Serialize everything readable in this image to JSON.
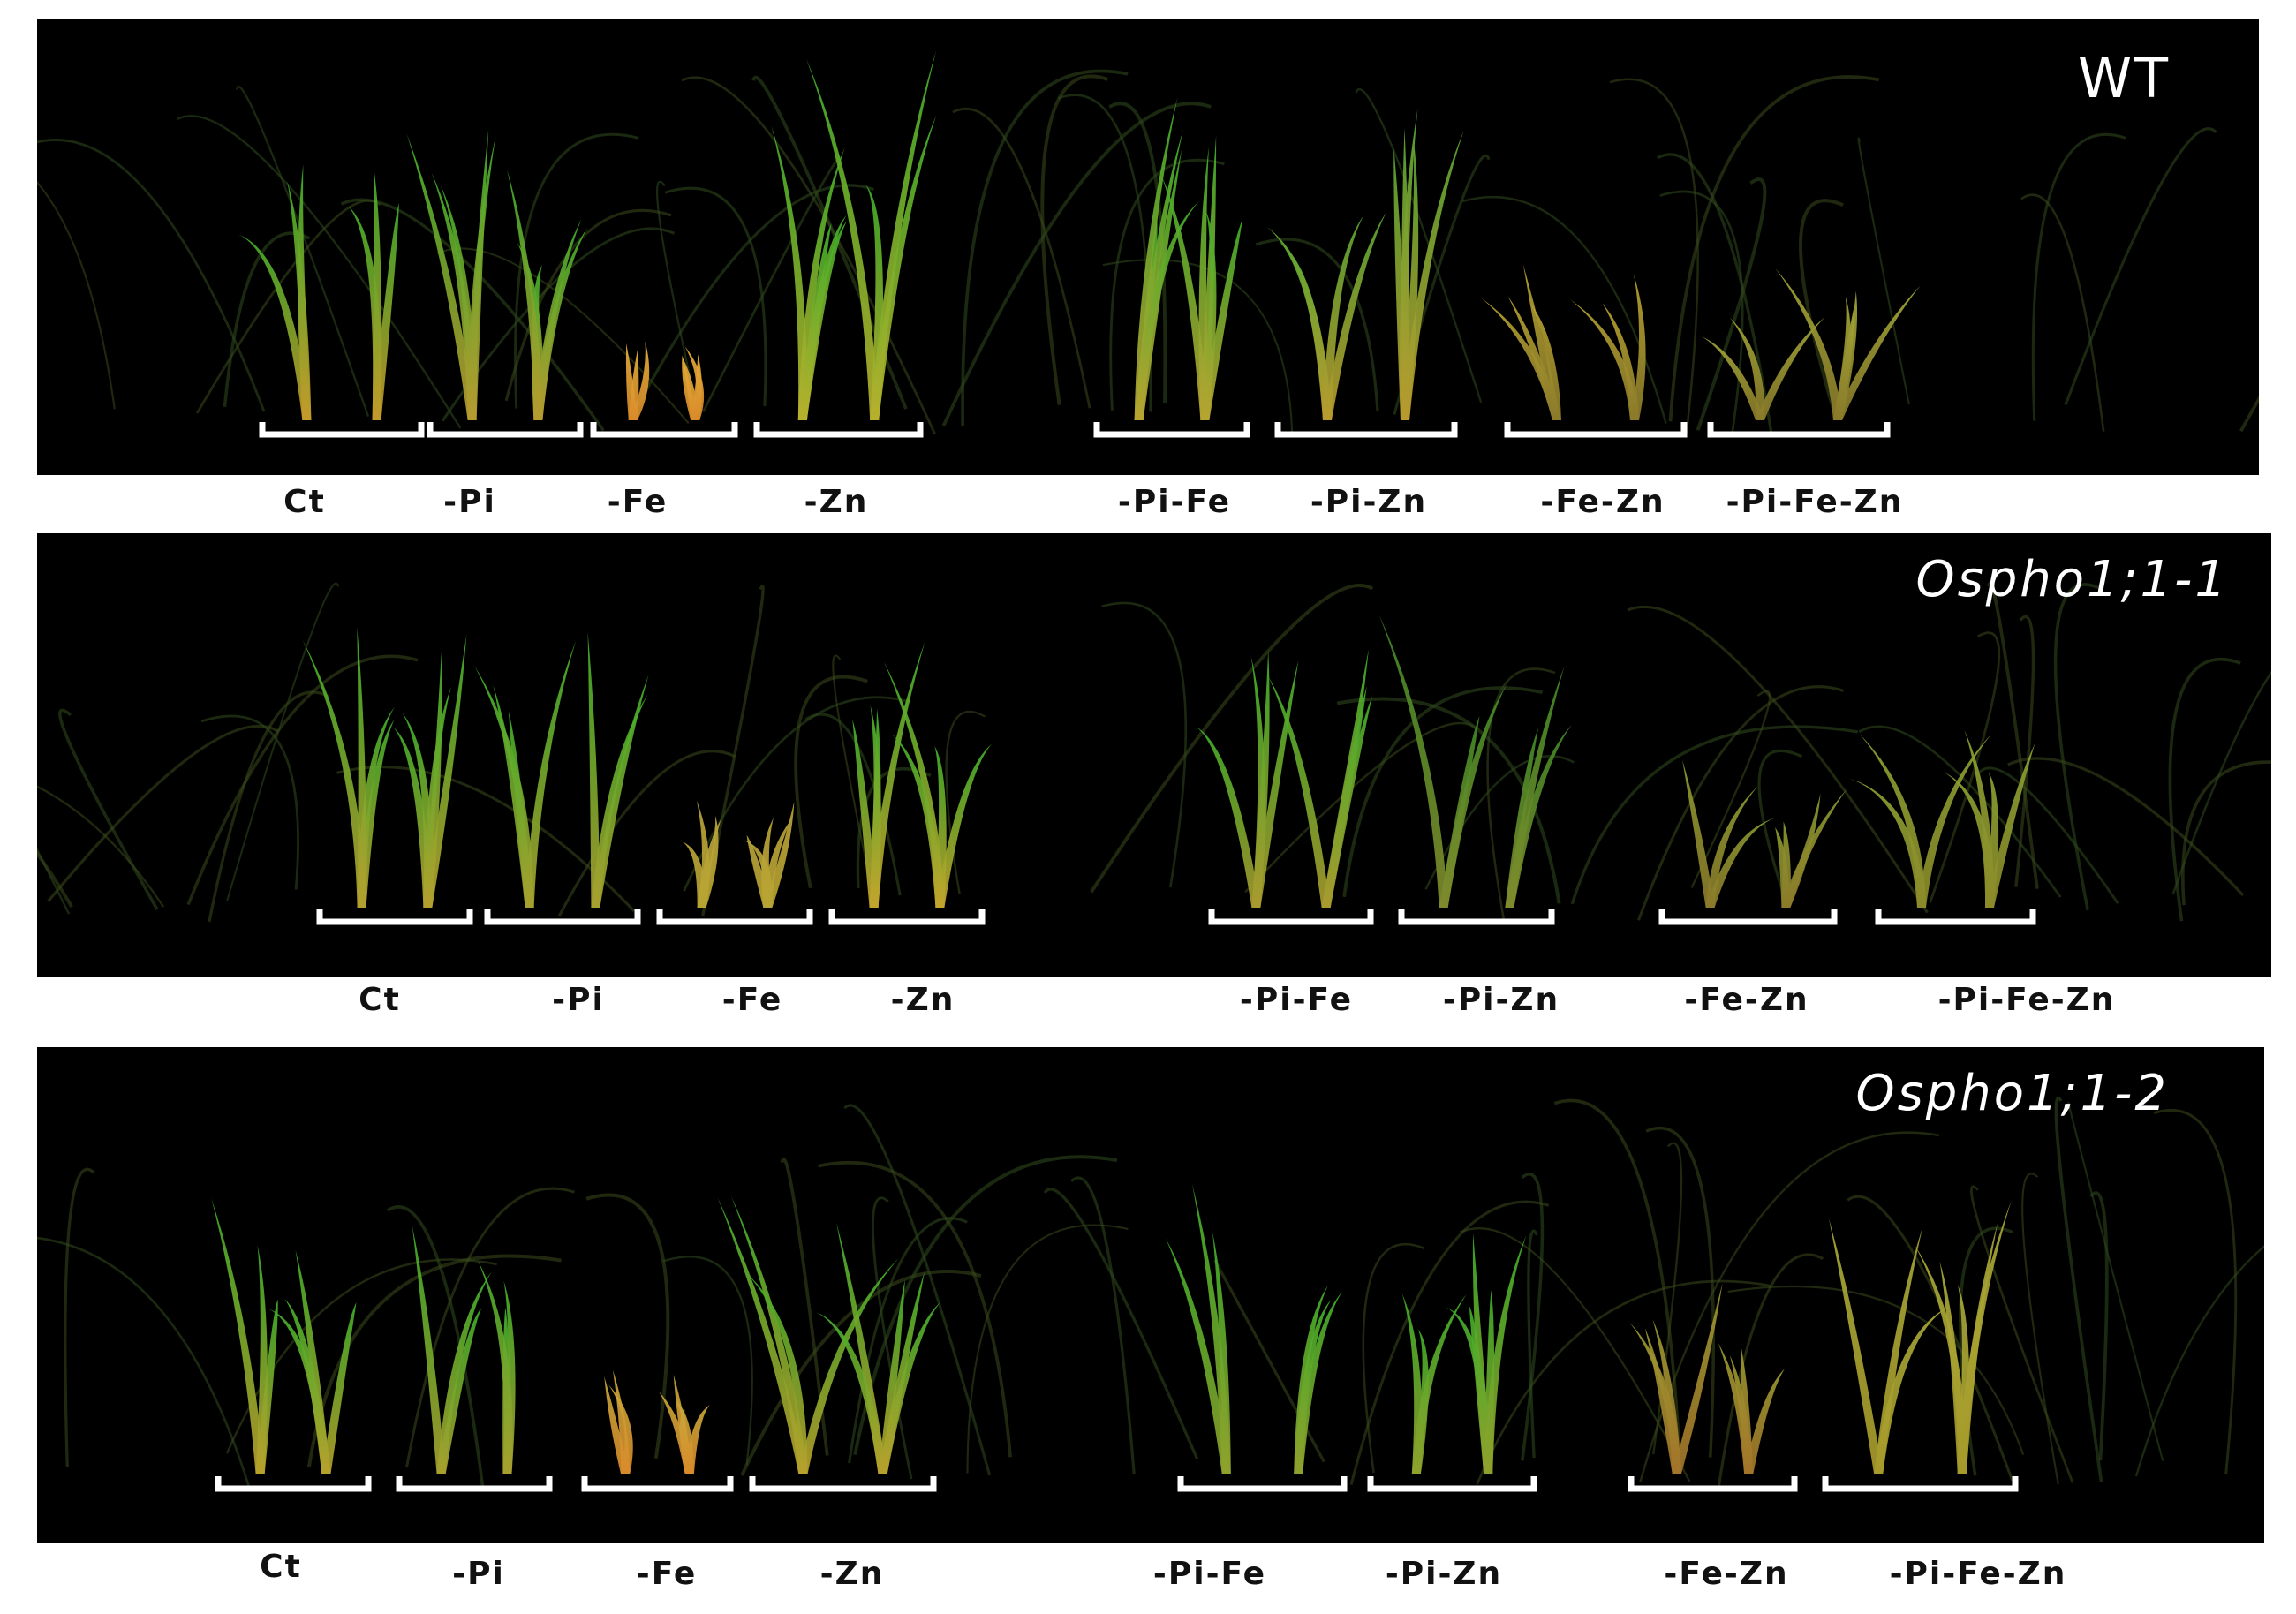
{
  "panels": [
    {
      "genotype": "WT",
      "genotype_style": "upright",
      "labels": [
        "Ct",
        "-Pi",
        "-Fe",
        "-Zn",
        "-Pi-Fe",
        "-Pi-Zn",
        "-Fe-Zn",
        "-Pi-Fe-Zn"
      ]
    },
    {
      "genotype": "Ospho1;1-1",
      "genotype_style": "italic",
      "labels": [
        "Ct",
        "-Pi",
        "-Fe",
        "-Zn",
        "-Pi-Fe",
        "-Pi-Zn",
        "-Fe-Zn",
        "-Pi-Fe-Zn"
      ]
    },
    {
      "genotype": "Ospho1;1-2",
      "genotype_style": "italic",
      "labels": [
        "Ct",
        "-Pi",
        "-Fe",
        "-Zn",
        "-Pi-Fe",
        "-Pi-Zn",
        "-Fe-Zn",
        "-Pi-Fe-Zn"
      ]
    }
  ],
  "colors": {
    "background": "#000000",
    "leaf_green": "#3fae2a",
    "leaf_yellow": "#b8a431",
    "leaf_orange": "#d98a2a",
    "bracket": "#ffffff",
    "label_text": "#111111"
  }
}
